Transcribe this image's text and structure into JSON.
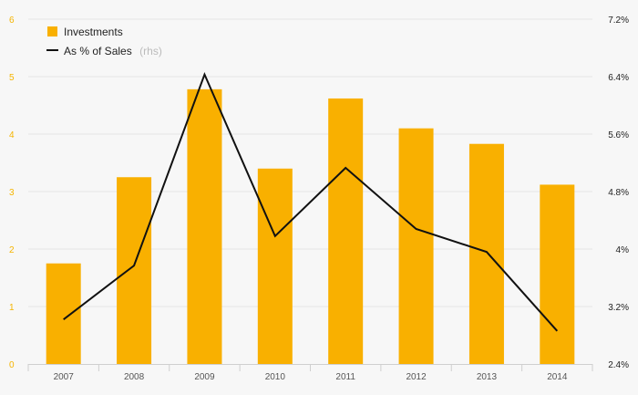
{
  "chart_data": {
    "type": "bar",
    "categories": [
      "2007",
      "2008",
      "2009",
      "2010",
      "2011",
      "2012",
      "2013",
      "2014"
    ],
    "series": [
      {
        "name": "Investments",
        "type": "bar",
        "axis": "left",
        "color": "#f9b000",
        "values": [
          1.75,
          3.25,
          4.78,
          3.4,
          4.62,
          4.1,
          3.83,
          3.12
        ]
      },
      {
        "name": "As % of Sales",
        "type": "line",
        "axis": "right",
        "color": "#111111",
        "values": [
          3.02,
          3.77,
          6.43,
          4.18,
          5.13,
          4.28,
          3.96,
          2.86
        ]
      }
    ],
    "legend": {
      "position": "top-left",
      "items": [
        {
          "label": "Investments",
          "note": ""
        },
        {
          "label": "As % of Sales",
          "note": "(rhs)"
        }
      ]
    },
    "y_left": {
      "min": 0,
      "max": 6,
      "ticks": [
        "0",
        "1",
        "2",
        "3",
        "4",
        "5",
        "6"
      ],
      "tick_color": "#f5b400"
    },
    "y_right": {
      "min": 2.4,
      "max": 7.2,
      "ticks": [
        "2.4%",
        "3.2%",
        "4%",
        "4.8%",
        "5.6%",
        "6.4%",
        "7.2%"
      ]
    },
    "grid": true,
    "title": "",
    "xlabel": "",
    "ylabel": ""
  }
}
